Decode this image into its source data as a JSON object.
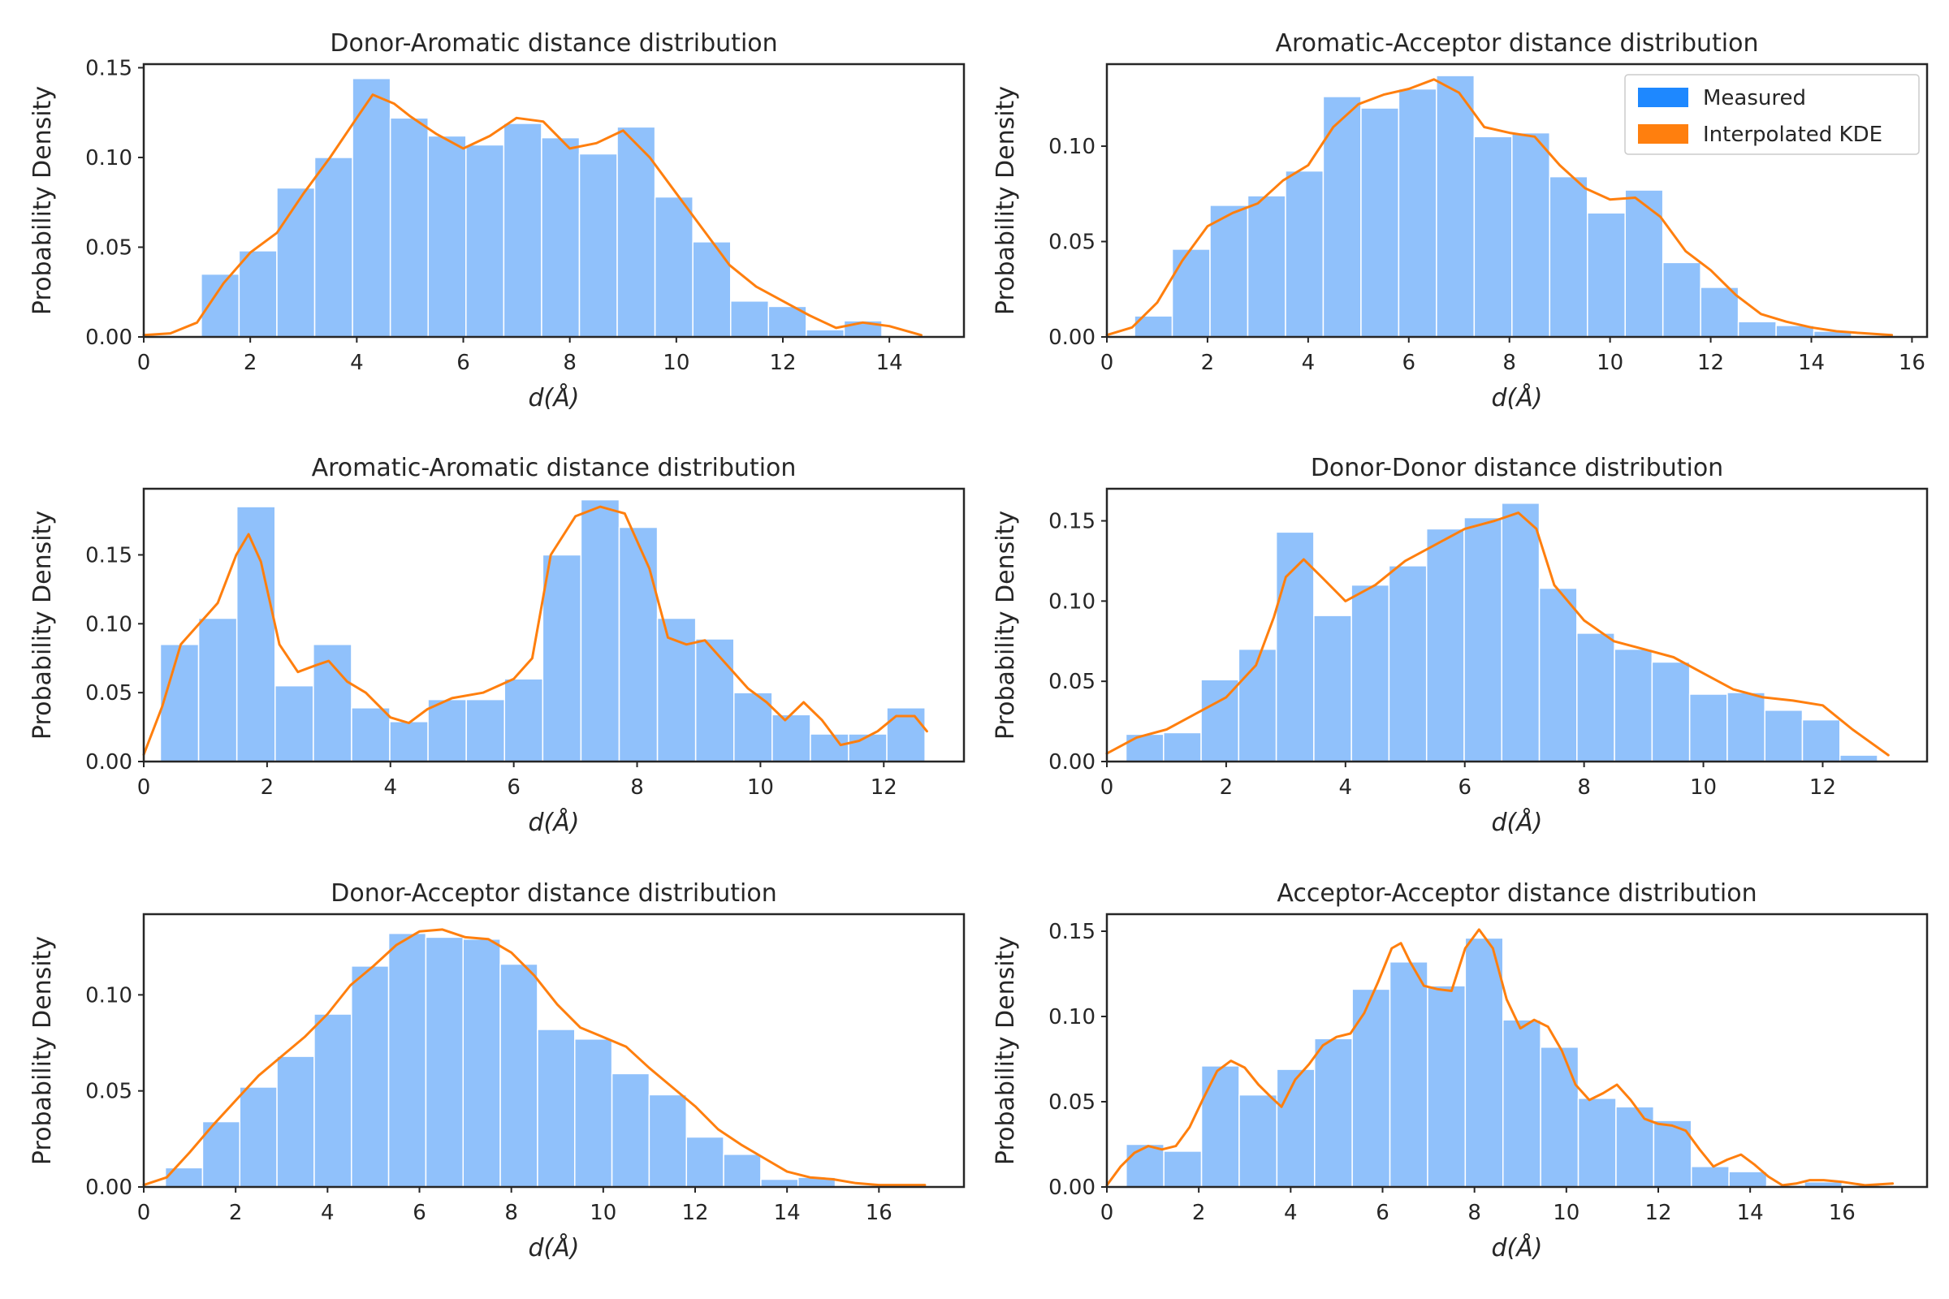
{
  "chart_data": [
    {
      "type": "bar",
      "title": "Donor-Aromatic distance distribution",
      "xlabel": "d(Å)",
      "ylabel": "Probability Density",
      "xlim": [
        0,
        15.4
      ],
      "ylim": [
        0,
        0.152
      ],
      "xticks": [
        0,
        2,
        4,
        6,
        8,
        10,
        12,
        14
      ],
      "yticks": [
        0.0,
        0.05,
        0.1,
        0.15
      ],
      "ytick_labels": [
        "0.00",
        "0.05",
        "0.10",
        "0.15"
      ],
      "grid": false,
      "legend": false,
      "bin_edges": [
        1.08,
        1.79,
        2.5,
        3.21,
        3.92,
        4.63,
        5.34,
        6.05,
        6.76,
        7.47,
        8.18,
        8.89,
        9.6,
        10.31,
        11.02,
        11.73,
        12.44,
        13.15,
        13.86
      ],
      "series": [
        {
          "name": "Measured",
          "values": [
            0.035,
            0.048,
            0.083,
            0.1,
            0.144,
            0.122,
            0.112,
            0.107,
            0.119,
            0.111,
            0.102,
            0.117,
            0.078,
            0.053,
            0.02,
            0.017,
            0.004,
            0.009
          ]
        },
        {
          "name": "Interpolated KDE",
          "x": [
            0.0,
            0.5,
            1.0,
            1.5,
            2.0,
            2.5,
            3.0,
            3.5,
            4.0,
            4.3,
            4.7,
            5.0,
            5.5,
            6.0,
            6.5,
            7.0,
            7.5,
            8.0,
            8.5,
            9.0,
            9.5,
            10.0,
            10.5,
            11.0,
            11.5,
            12.0,
            12.5,
            13.0,
            13.5,
            14.0,
            14.6
          ],
          "values": [
            0.001,
            0.002,
            0.008,
            0.03,
            0.047,
            0.058,
            0.08,
            0.1,
            0.122,
            0.135,
            0.13,
            0.123,
            0.113,
            0.105,
            0.112,
            0.122,
            0.12,
            0.105,
            0.108,
            0.115,
            0.1,
            0.08,
            0.06,
            0.04,
            0.028,
            0.02,
            0.012,
            0.005,
            0.008,
            0.006,
            0.001
          ]
        }
      ]
    },
    {
      "type": "bar",
      "title": "Aromatic-Acceptor distance distribution",
      "xlabel": "d(Å)",
      "ylabel": "Probability Density",
      "xlim": [
        0,
        16.3
      ],
      "ylim": [
        0,
        0.143
      ],
      "xticks": [
        0,
        2,
        4,
        6,
        8,
        10,
        12,
        14,
        16
      ],
      "yticks": [
        0.0,
        0.05,
        0.1
      ],
      "ytick_labels": [
        "0.00",
        "0.05",
        "0.10"
      ],
      "grid": false,
      "legend": true,
      "legend_position": "top-right",
      "legend_entries": [
        "Measured",
        "Interpolated KDE"
      ],
      "legend_colors": [
        "#1e88ff",
        "#ff7f0e"
      ],
      "bin_edges": [
        0.55,
        1.3,
        2.05,
        2.8,
        3.55,
        4.3,
        5.05,
        5.8,
        6.55,
        7.3,
        8.05,
        8.8,
        9.55,
        10.3,
        11.05,
        11.8,
        12.55,
        13.3,
        14.05,
        14.8
      ],
      "series": [
        {
          "name": "Measured",
          "values": [
            0.011,
            0.046,
            0.069,
            0.074,
            0.087,
            0.126,
            0.12,
            0.13,
            0.137,
            0.105,
            0.107,
            0.084,
            0.065,
            0.077,
            0.039,
            0.026,
            0.008,
            0.006,
            0.003
          ]
        },
        {
          "name": "Interpolated KDE",
          "x": [
            0.0,
            0.5,
            1.0,
            1.5,
            2.0,
            2.5,
            3.0,
            3.5,
            4.0,
            4.5,
            5.0,
            5.5,
            6.0,
            6.5,
            7.0,
            7.5,
            8.0,
            8.5,
            9.0,
            9.5,
            10.0,
            10.5,
            11.0,
            11.5,
            12.0,
            12.5,
            13.0,
            13.5,
            14.0,
            14.5,
            15.0,
            15.6
          ],
          "values": [
            0.001,
            0.005,
            0.018,
            0.04,
            0.058,
            0.065,
            0.07,
            0.082,
            0.09,
            0.11,
            0.122,
            0.127,
            0.13,
            0.135,
            0.128,
            0.11,
            0.107,
            0.105,
            0.09,
            0.078,
            0.072,
            0.073,
            0.063,
            0.045,
            0.035,
            0.022,
            0.012,
            0.008,
            0.005,
            0.003,
            0.002,
            0.001
          ]
        }
      ]
    },
    {
      "type": "bar",
      "title": "Aromatic-Aromatic distance distribution",
      "xlabel": "d(Å)",
      "ylabel": "Probability Density",
      "xlim": [
        0,
        13.3
      ],
      "ylim": [
        0,
        0.198
      ],
      "xticks": [
        0,
        2,
        4,
        6,
        8,
        10,
        12
      ],
      "yticks": [
        0.0,
        0.05,
        0.1,
        0.15
      ],
      "ytick_labels": [
        "0.00",
        "0.05",
        "0.10",
        "0.15"
      ],
      "grid": false,
      "legend": false,
      "bin_edges": [
        0.27,
        0.89,
        1.51,
        2.13,
        2.75,
        3.37,
        3.99,
        4.61,
        5.23,
        5.85,
        6.47,
        7.09,
        7.71,
        8.33,
        8.95,
        9.57,
        10.19,
        10.81,
        11.43,
        12.05,
        12.67
      ],
      "series": [
        {
          "name": "Measured",
          "values": [
            0.085,
            0.104,
            0.185,
            0.055,
            0.085,
            0.039,
            0.029,
            0.045,
            0.045,
            0.06,
            0.15,
            0.19,
            0.17,
            0.104,
            0.089,
            0.05,
            0.034,
            0.02,
            0.02,
            0.039
          ]
        },
        {
          "name": "Interpolated KDE",
          "x": [
            0.0,
            0.3,
            0.6,
            0.9,
            1.2,
            1.5,
            1.7,
            1.9,
            2.2,
            2.5,
            2.8,
            3.0,
            3.3,
            3.6,
            4.0,
            4.3,
            4.6,
            5.0,
            5.5,
            6.0,
            6.3,
            6.6,
            7.0,
            7.4,
            7.8,
            8.2,
            8.5,
            8.8,
            9.1,
            9.5,
            9.8,
            10.1,
            10.4,
            10.7,
            11.0,
            11.3,
            11.6,
            11.9,
            12.2,
            12.5,
            12.7
          ],
          "values": [
            0.005,
            0.04,
            0.085,
            0.1,
            0.115,
            0.15,
            0.165,
            0.145,
            0.085,
            0.065,
            0.07,
            0.073,
            0.058,
            0.05,
            0.032,
            0.028,
            0.038,
            0.046,
            0.05,
            0.06,
            0.075,
            0.15,
            0.178,
            0.185,
            0.18,
            0.14,
            0.09,
            0.085,
            0.088,
            0.068,
            0.053,
            0.043,
            0.03,
            0.043,
            0.03,
            0.012,
            0.015,
            0.022,
            0.033,
            0.033,
            0.022
          ]
        }
      ]
    },
    {
      "type": "bar",
      "title": "Donor-Donor distance distribution",
      "xlabel": "d(Å)",
      "ylabel": "Probability Density",
      "xlim": [
        0,
        13.75
      ],
      "ylim": [
        0,
        0.17
      ],
      "xticks": [
        0,
        2,
        4,
        6,
        8,
        10,
        12
      ],
      "yticks": [
        0.0,
        0.05,
        0.1,
        0.15
      ],
      "ytick_labels": [
        "0.00",
        "0.05",
        "0.10",
        "0.15"
      ],
      "grid": false,
      "legend": false,
      "bin_edges": [
        0.32,
        0.95,
        1.58,
        2.21,
        2.84,
        3.47,
        4.1,
        4.73,
        5.36,
        5.99,
        6.62,
        7.25,
        7.88,
        8.51,
        9.14,
        9.77,
        10.4,
        11.03,
        11.66,
        12.29,
        12.92
      ],
      "series": [
        {
          "name": "Measured",
          "values": [
            0.017,
            0.018,
            0.051,
            0.07,
            0.143,
            0.091,
            0.11,
            0.122,
            0.145,
            0.152,
            0.161,
            0.108,
            0.08,
            0.07,
            0.062,
            0.042,
            0.043,
            0.032,
            0.026,
            0.004
          ]
        },
        {
          "name": "Interpolated KDE",
          "x": [
            0.0,
            0.5,
            1.0,
            1.5,
            2.0,
            2.5,
            2.8,
            3.0,
            3.3,
            3.6,
            4.0,
            4.5,
            5.0,
            5.5,
            6.0,
            6.5,
            6.9,
            7.2,
            7.5,
            8.0,
            8.5,
            9.0,
            9.5,
            10.0,
            10.5,
            11.0,
            11.5,
            12.0,
            12.5,
            13.1
          ],
          "values": [
            0.005,
            0.015,
            0.02,
            0.03,
            0.04,
            0.06,
            0.09,
            0.115,
            0.126,
            0.115,
            0.1,
            0.11,
            0.125,
            0.135,
            0.145,
            0.15,
            0.155,
            0.145,
            0.11,
            0.088,
            0.075,
            0.07,
            0.065,
            0.055,
            0.045,
            0.04,
            0.038,
            0.035,
            0.02,
            0.004
          ]
        }
      ]
    },
    {
      "type": "bar",
      "title": "Donor-Acceptor distance distribution",
      "xlabel": "d(Å)",
      "ylabel": "Probability Density",
      "xlim": [
        0,
        17.85
      ],
      "ylim": [
        0,
        0.142
      ],
      "xticks": [
        0,
        2,
        4,
        6,
        8,
        10,
        12,
        14,
        16
      ],
      "yticks": [
        0.0,
        0.05,
        0.1
      ],
      "ytick_labels": [
        "0.00",
        "0.05",
        "0.10"
      ],
      "grid": false,
      "legend": false,
      "bin_edges": [
        0.47,
        1.28,
        2.09,
        2.9,
        3.71,
        4.52,
        5.33,
        6.14,
        6.95,
        7.76,
        8.57,
        9.38,
        10.19,
        11.0,
        11.81,
        12.62,
        13.43,
        14.24,
        15.05
      ],
      "series": [
        {
          "name": "Measured",
          "values": [
            0.01,
            0.034,
            0.052,
            0.068,
            0.09,
            0.115,
            0.132,
            0.13,
            0.129,
            0.116,
            0.082,
            0.077,
            0.059,
            0.048,
            0.026,
            0.017,
            0.004,
            0.005
          ]
        },
        {
          "name": "Interpolated KDE",
          "x": [
            0.0,
            0.5,
            1.0,
            1.5,
            2.0,
            2.5,
            3.0,
            3.5,
            4.0,
            4.5,
            5.0,
            5.5,
            6.0,
            6.5,
            7.0,
            7.5,
            8.0,
            8.5,
            9.0,
            9.5,
            10.0,
            10.5,
            11.0,
            11.5,
            12.0,
            12.5,
            13.0,
            13.5,
            14.0,
            14.5,
            15.0,
            15.5,
            16.0,
            17.0
          ],
          "values": [
            0.001,
            0.005,
            0.018,
            0.032,
            0.045,
            0.058,
            0.068,
            0.078,
            0.09,
            0.105,
            0.115,
            0.126,
            0.133,
            0.134,
            0.13,
            0.129,
            0.122,
            0.11,
            0.095,
            0.083,
            0.078,
            0.073,
            0.062,
            0.052,
            0.042,
            0.03,
            0.022,
            0.015,
            0.008,
            0.005,
            0.004,
            0.002,
            0.001,
            0.001
          ]
        }
      ]
    },
    {
      "type": "bar",
      "title": "Acceptor-Acceptor distance distribution",
      "xlabel": "d(Å)",
      "ylabel": "Probability Density",
      "xlim": [
        0,
        17.85
      ],
      "ylim": [
        0,
        0.16
      ],
      "xticks": [
        0,
        2,
        4,
        6,
        8,
        10,
        12,
        14,
        16
      ],
      "yticks": [
        0.0,
        0.05,
        0.1,
        0.15
      ],
      "ytick_labels": [
        "0.00",
        "0.05",
        "0.10",
        "0.15"
      ],
      "grid": false,
      "legend": false,
      "bin_edges": [
        0.42,
        1.24,
        2.06,
        2.88,
        3.7,
        4.52,
        5.34,
        6.16,
        6.98,
        7.8,
        8.62,
        9.44,
        10.26,
        11.08,
        11.9,
        12.72,
        13.54,
        14.36,
        15.18,
        16.0,
        16.82
      ],
      "series": [
        {
          "name": "Measured",
          "values": [
            0.025,
            0.021,
            0.071,
            0.054,
            0.069,
            0.087,
            0.116,
            0.132,
            0.118,
            0.146,
            0.098,
            0.082,
            0.052,
            0.047,
            0.039,
            0.012,
            0.009,
            0.001,
            0.003,
            0.001
          ]
        },
        {
          "name": "Interpolated KDE",
          "x": [
            0.0,
            0.3,
            0.6,
            0.9,
            1.2,
            1.5,
            1.8,
            2.1,
            2.4,
            2.7,
            3.0,
            3.3,
            3.6,
            3.8,
            4.1,
            4.4,
            4.7,
            5.0,
            5.3,
            5.6,
            5.9,
            6.2,
            6.4,
            6.6,
            6.9,
            7.2,
            7.5,
            7.8,
            8.1,
            8.4,
            8.7,
            9.0,
            9.3,
            9.6,
            9.9,
            10.2,
            10.5,
            10.8,
            11.1,
            11.4,
            11.7,
            12.0,
            12.3,
            12.6,
            12.9,
            13.2,
            13.5,
            13.8,
            14.1,
            14.4,
            14.7,
            15.0,
            15.3,
            15.6,
            16.0,
            16.5,
            17.1
          ],
          "values": [
            0.001,
            0.012,
            0.02,
            0.024,
            0.022,
            0.024,
            0.035,
            0.052,
            0.068,
            0.074,
            0.07,
            0.06,
            0.052,
            0.047,
            0.063,
            0.072,
            0.083,
            0.088,
            0.09,
            0.102,
            0.12,
            0.14,
            0.143,
            0.132,
            0.118,
            0.116,
            0.115,
            0.14,
            0.151,
            0.14,
            0.11,
            0.093,
            0.098,
            0.094,
            0.08,
            0.06,
            0.051,
            0.055,
            0.06,
            0.051,
            0.04,
            0.037,
            0.036,
            0.033,
            0.022,
            0.012,
            0.016,
            0.019,
            0.013,
            0.006,
            0.001,
            0.002,
            0.004,
            0.004,
            0.003,
            0.001,
            0.002
          ]
        }
      ]
    }
  ]
}
